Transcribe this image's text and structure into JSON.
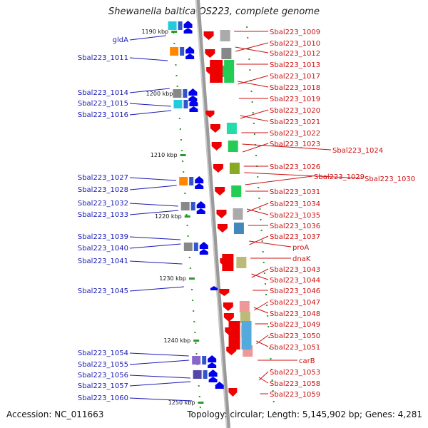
{
  "title": "Shewanella baltica OS223, complete genome",
  "accession": "Accession: NC_011663",
  "topology": "Topology: circular; Length: 5,145,902 bp; Genes: 4,281",
  "colors": {
    "forward": "#0000ee",
    "reverse": "#ee0000",
    "left_label": "#1a1ab4",
    "right_label": "#cc1111",
    "backbone": "#9a9a9a",
    "tick": "#2a9a2a"
  },
  "scale_ticks": [
    "1190 kbp",
    "1200 kbp",
    "1210 kbp",
    "1220 kbp",
    "1230 kbp",
    "1240 kbp",
    "1250 kbp"
  ],
  "left_genes": [
    "gldA",
    "Sbal223_1011",
    "Sbal223_1014",
    "Sbal223_1015",
    "Sbal223_1016",
    "Sbal223_1027",
    "Sbal223_1028",
    "Sbal223_1032",
    "Sbal223_1033",
    "Sbal223_1039",
    "Sbal223_1040",
    "Sbal223_1041",
    "Sbal223_1045",
    "Sbal223_1054",
    "Sbal223_1055",
    "Sbal223_1056",
    "Sbal223_1057",
    "Sbal223_1060"
  ],
  "right_genes": [
    "Sbal223_1009",
    "Sbal223_1010",
    "Sbal223_1012",
    "Sbal223_1013",
    "Sbal223_1017",
    "Sbal223_1018",
    "Sbal223_1019",
    "Sbal223_1020",
    "Sbal223_1021",
    "Sbal223_1022",
    "Sbal223_1023",
    "Sbal223_1024",
    "Sbal223_1026",
    "Sbal223_1029",
    "Sbal223_1030",
    "Sbal223_1031",
    "Sbal223_1034",
    "Sbal223_1035",
    "Sbal223_1036",
    "Sbal223_1037",
    "proA",
    "dnaK",
    "Sbal223_1043",
    "Sbal223_1044",
    "Sbal223_1046",
    "Sbal223_1047",
    "Sbal223_1048",
    "Sbal223_1049",
    "Sbal223_1050",
    "Sbal223_1051",
    "carB",
    "Sbal223_1053",
    "Sbal223_1058",
    "Sbal223_1059"
  ]
}
